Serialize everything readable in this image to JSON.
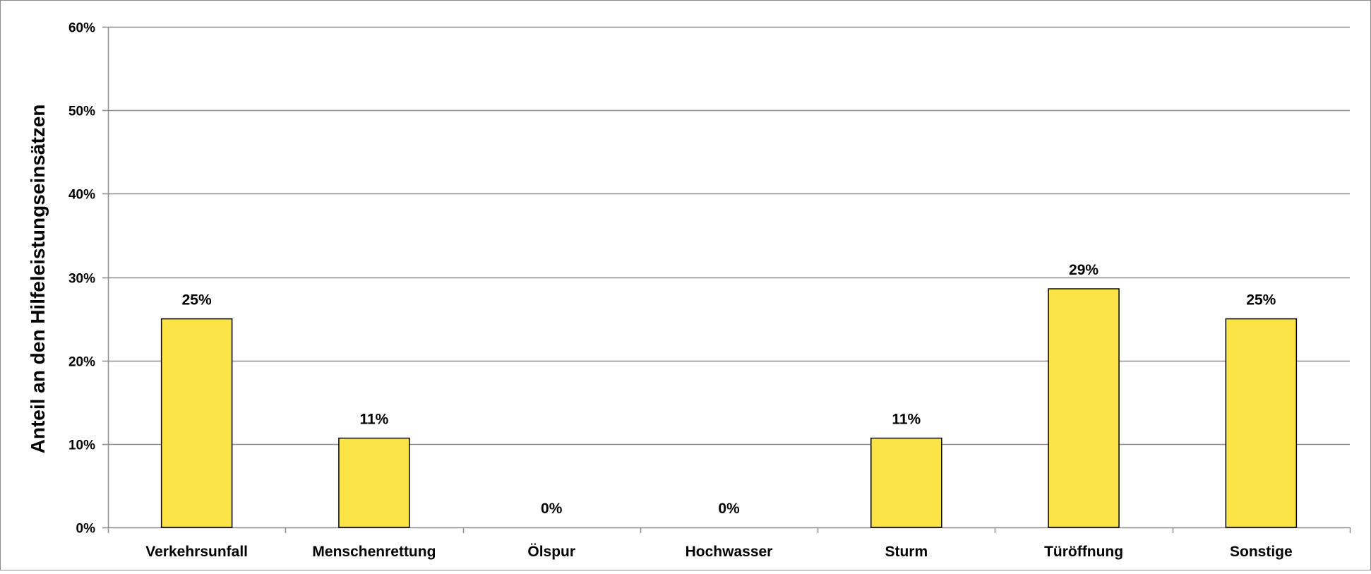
{
  "chart_data": {
    "type": "bar",
    "title": "",
    "xlabel": "",
    "ylabel": "Anteil an den Hilfeleistungseinsätzen",
    "categories": [
      "Verkehrsunfall",
      "Menschenrettung",
      "Ölspur",
      "Hochwasser",
      "Sturm",
      "Türöffnung",
      "Sonstige"
    ],
    "values": [
      25,
      10.7,
      0,
      0,
      10.7,
      28.6,
      25
    ],
    "data_labels": [
      "25%",
      "11%",
      "0%",
      "0%",
      "11%",
      "29%",
      "25%"
    ],
    "ylim": [
      0,
      60
    ],
    "yticks": [
      0,
      10,
      20,
      30,
      40,
      50,
      60
    ],
    "ytick_labels": [
      "0%",
      "10%",
      "20%",
      "30%",
      "40%",
      "50%",
      "60%"
    ],
    "grid": true,
    "legend": "none",
    "colors": {
      "bar_fill": "#FCE447",
      "bar_stroke": "#000000",
      "grid": "#8C8C8C",
      "axis": "#8C8C8C",
      "border": "#8C8C8C"
    }
  }
}
